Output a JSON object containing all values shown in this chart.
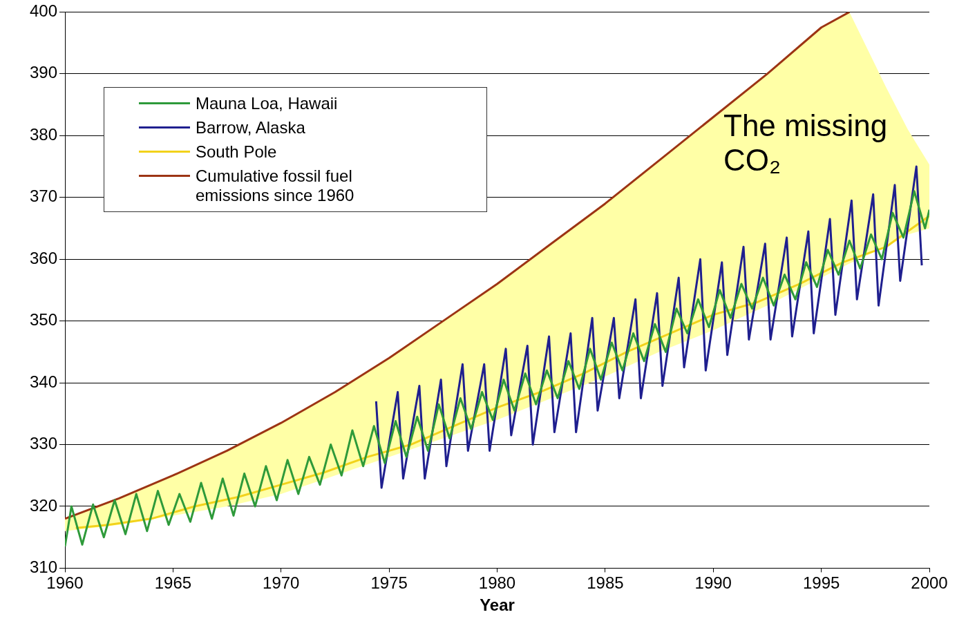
{
  "chart_data": {
    "type": "line",
    "xlabel": "Year",
    "xlim": [
      1960,
      2000
    ],
    "xticks": [
      1960,
      1965,
      1970,
      1975,
      1980,
      1985,
      1990,
      1995,
      2000
    ],
    "ylim": [
      310,
      400
    ],
    "yticks": [
      310,
      320,
      330,
      340,
      350,
      360,
      370,
      380,
      390,
      400
    ],
    "grid": "y",
    "legend": "top left",
    "marker": "none",
    "line_style": "solid",
    "annotations": [
      "The missing CO₂"
    ],
    "series": [
      {
        "name": "Mauna Loa, Hawaii",
        "color": "#2e9a3a",
        "x": [
          1960.0,
          1960.3,
          1960.8,
          1961.3,
          1961.8,
          1962.3,
          1962.8,
          1963.3,
          1963.8,
          1964.3,
          1964.8,
          1965.3,
          1965.8,
          1966.3,
          1966.8,
          1967.3,
          1967.8,
          1968.3,
          1968.8,
          1969.3,
          1969.8,
          1970.3,
          1970.8,
          1971.3,
          1971.8,
          1972.3,
          1972.8,
          1973.3,
          1973.8,
          1974.3,
          1974.8,
          1975.3,
          1975.8,
          1976.3,
          1976.8,
          1977.3,
          1977.8,
          1978.3,
          1978.8,
          1979.3,
          1979.8,
          1980.3,
          1980.8,
          1981.3,
          1981.8,
          1982.3,
          1982.8,
          1983.3,
          1983.8,
          1984.3,
          1984.8,
          1985.3,
          1985.8,
          1986.3,
          1986.8,
          1987.3,
          1987.8,
          1988.3,
          1988.8,
          1989.3,
          1989.8,
          1990.3,
          1990.8,
          1991.3,
          1991.8,
          1992.3,
          1992.8,
          1993.3,
          1993.8,
          1994.3,
          1994.8,
          1995.3,
          1995.8,
          1996.3,
          1996.8,
          1997.3,
          1997.8,
          1998.3,
          1998.8,
          1999.3,
          1999.8,
          2000.0
        ],
        "values": [
          313.5,
          320,
          313.8,
          320.3,
          315,
          321,
          315.5,
          322,
          316,
          322.5,
          317,
          322,
          317.5,
          323.8,
          318,
          324.5,
          318.5,
          325.3,
          320,
          326.5,
          321,
          327.5,
          322,
          328,
          323.5,
          330,
          325,
          332.3,
          326.5,
          333,
          327,
          333.8,
          328,
          334.5,
          329,
          336.5,
          331,
          337.5,
          332.5,
          338.5,
          334,
          340.5,
          335.5,
          341.5,
          336.5,
          342,
          337.5,
          343.5,
          339,
          345.5,
          340.5,
          346.5,
          342,
          348,
          343.5,
          349.5,
          345,
          352,
          348,
          353.5,
          349,
          355,
          350.5,
          356,
          352,
          357,
          352.5,
          357.5,
          353.5,
          359.5,
          355.5,
          361.5,
          357.5,
          363,
          358.5,
          364,
          360,
          367.5,
          363.5,
          371,
          365,
          368
        ]
      },
      {
        "name": "Barrow, Alaska",
        "color": "#1f1f8f",
        "x": [
          1974.4,
          1974.65,
          1975.4,
          1975.65,
          1976.4,
          1976.65,
          1977.4,
          1977.65,
          1978.4,
          1978.65,
          1979.4,
          1979.65,
          1980.4,
          1980.65,
          1981.4,
          1981.65,
          1982.4,
          1982.65,
          1983.4,
          1983.65,
          1984.4,
          1984.65,
          1985.4,
          1985.65,
          1986.4,
          1986.65,
          1987.4,
          1987.65,
          1988.4,
          1988.65,
          1989.4,
          1989.65,
          1990.4,
          1990.65,
          1991.4,
          1991.65,
          1992.4,
          1992.65,
          1993.4,
          1993.65,
          1994.4,
          1994.65,
          1995.4,
          1995.65,
          1996.4,
          1996.65,
          1997.4,
          1997.65,
          1998.4,
          1998.65,
          1999.4,
          1999.65
        ],
        "values": [
          337,
          323,
          338.5,
          324.5,
          339.5,
          324.5,
          340.5,
          326.5,
          343,
          329,
          343,
          329,
          345.5,
          331.5,
          346,
          330,
          347.5,
          332,
          348,
          332,
          350.5,
          335.5,
          350.5,
          337.5,
          353.5,
          337.5,
          354.5,
          339.5,
          357,
          342.5,
          360,
          342,
          359.5,
          344.5,
          362,
          347,
          362.5,
          347,
          363.5,
          347.5,
          364.5,
          348,
          366.5,
          351,
          369.5,
          353.5,
          370.5,
          352.5,
          372,
          356.5,
          375,
          359
        ]
      },
      {
        "name": "South Pole",
        "color": "#f2d21b",
        "x": [
          1960.5,
          1962,
          1964,
          1966,
          1968,
          1970,
          1972,
          1974,
          1976,
          1978,
          1980,
          1982,
          1984,
          1986,
          1988,
          1990,
          1992,
          1994,
          1996,
          1998,
          2000
        ],
        "values": [
          316.5,
          317,
          318,
          320,
          321.5,
          323.5,
          325.5,
          328,
          330,
          333,
          336,
          338.5,
          341.5,
          345,
          348,
          351,
          353,
          356,
          359.5,
          362,
          367
        ]
      },
      {
        "name": "Cumulative fossil fuel emissions since 1960",
        "color": "#9c3414",
        "x": [
          1960,
          1962.5,
          1965,
          1967.5,
          1970,
          1972.5,
          1975,
          1977.5,
          1980,
          1982.5,
          1985,
          1987.5,
          1990,
          1992.5,
          1995,
          1996.3,
          1998,
          1999,
          2000
        ],
        "values": [
          318,
          321.3,
          325,
          329,
          333.5,
          338.5,
          344,
          350,
          356,
          362.5,
          369,
          376,
          383,
          390,
          397.5,
          400,
          null,
          null,
          null
        ],
        "upper": [
          318,
          321.3,
          325,
          329,
          333.5,
          338.5,
          344,
          350,
          356,
          362.5,
          369,
          376,
          383,
          390,
          397.5,
          400,
          387.8,
          381,
          375.3
        ],
        "lower": [
          316,
          317,
          318.5,
          320,
          322,
          325,
          328,
          331,
          334,
          337.5,
          341,
          345,
          348.5,
          352.5,
          357,
          359.3,
          362,
          364,
          365
        ]
      }
    ]
  }
}
